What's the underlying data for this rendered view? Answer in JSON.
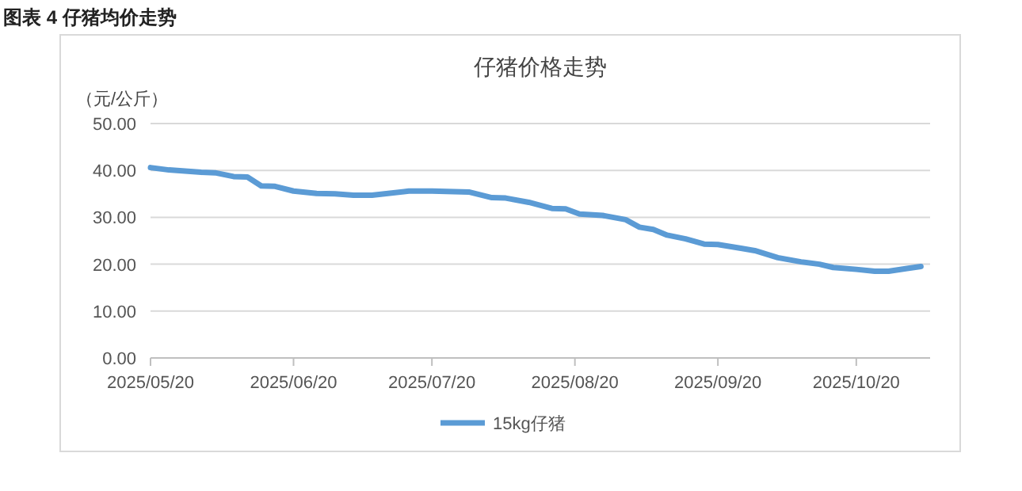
{
  "chart_data": {
    "type": "line",
    "title": "仔猪价格走势",
    "ylabel": "（元/公斤）",
    "annotations": [
      "图表 4 仔猪均价走势"
    ],
    "x": [
      "2025-05-20",
      "2025-05-24",
      "2025-05-31",
      "2025-06-03",
      "2025-06-07",
      "2025-06-10",
      "2025-06-13",
      "2025-06-16",
      "2025-06-20",
      "2025-06-25",
      "2025-06-29",
      "2025-07-03",
      "2025-07-07",
      "2025-07-15",
      "2025-07-20",
      "2025-07-28",
      "2025-08-02",
      "2025-08-05",
      "2025-08-10",
      "2025-08-15",
      "2025-08-18",
      "2025-08-21",
      "2025-08-26",
      "2025-08-31",
      "2025-09-03",
      "2025-09-06",
      "2025-09-09",
      "2025-09-13",
      "2025-09-17",
      "2025-09-20",
      "2025-09-25",
      "2025-09-28",
      "2025-10-03",
      "2025-10-08",
      "2025-10-12",
      "2025-10-15",
      "2025-10-20",
      "2025-10-24",
      "2025-10-27",
      "2025-10-31",
      "2025-11-03"
    ],
    "series": [
      {
        "name": "15kg仔猪",
        "color": "#5b9bd5",
        "values": [
          40.6,
          40.1,
          39.6,
          39.5,
          38.7,
          38.6,
          36.7,
          36.6,
          35.6,
          35.1,
          35.0,
          34.7,
          34.7,
          35.6,
          35.6,
          35.4,
          34.2,
          34.1,
          33.2,
          31.9,
          31.8,
          30.7,
          30.4,
          29.5,
          27.9,
          27.4,
          26.2,
          25.4,
          24.3,
          24.2,
          23.4,
          22.9,
          21.4,
          20.5,
          20.0,
          19.3,
          18.9,
          18.5,
          18.5,
          19.1,
          19.5
        ]
      }
    ],
    "xlim": [
      "2025-05-20",
      "2025-11-05"
    ],
    "xticks": [
      {
        "value": "2025-05-20",
        "label": "2025/05/20"
      },
      {
        "value": "2025-06-20",
        "label": "2025/06/20"
      },
      {
        "value": "2025-07-20",
        "label": "2025/07/20"
      },
      {
        "value": "2025-08-20",
        "label": "2025/08/20"
      },
      {
        "value": "2025-09-20",
        "label": "2025/09/20"
      },
      {
        "value": "2025-10-20",
        "label": "2025/10/20"
      }
    ],
    "ylim": [
      0,
      50
    ],
    "yticks": [
      {
        "value": 0,
        "label": "0.00"
      },
      {
        "value": 10,
        "label": "10.00"
      },
      {
        "value": 20,
        "label": "20.00"
      },
      {
        "value": 30,
        "label": "30.00"
      },
      {
        "value": 40,
        "label": "40.00"
      },
      {
        "value": 50,
        "label": "50.00"
      }
    ],
    "grid": "y",
    "legend": "bottom",
    "marker": "none",
    "line_style": "solid"
  }
}
